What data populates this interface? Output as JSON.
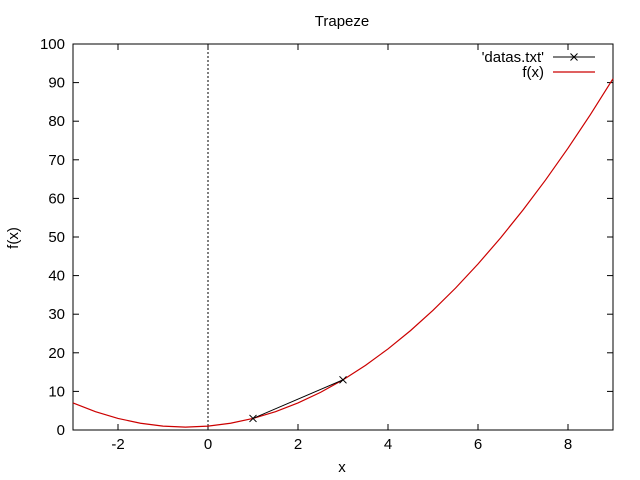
{
  "chart_data": {
    "type": "line",
    "title": "Trapeze",
    "xlabel": "x",
    "ylabel": "f(x)",
    "xlim": [
      -3,
      9
    ],
    "ylim": [
      0,
      100
    ],
    "xticks": [
      -2,
      0,
      2,
      4,
      6,
      8
    ],
    "yticks": [
      0,
      10,
      20,
      30,
      40,
      50,
      60,
      70,
      80,
      90,
      100
    ],
    "grid": false,
    "legend_position": "top-right",
    "vertical_reference_line": {
      "x": 0,
      "style": "dotted"
    },
    "series": [
      {
        "name": "'datas.txt'",
        "style": "linespoints",
        "marker": "x",
        "color": "#000000",
        "x": [
          1,
          3
        ],
        "y": [
          3,
          13
        ]
      },
      {
        "name": "f(x)",
        "style": "line",
        "color": "#cc0000",
        "function": "x^2 + x + 1",
        "x": [
          -3,
          -2.5,
          -2,
          -1.5,
          -1,
          -0.5,
          0,
          0.5,
          1,
          1.5,
          2,
          2.5,
          3,
          3.5,
          4,
          4.5,
          5,
          5.5,
          6,
          6.5,
          7,
          7.5,
          8,
          8.5,
          9
        ],
        "y": [
          7,
          4.75,
          3,
          1.75,
          1,
          0.75,
          1,
          1.75,
          3,
          4.75,
          7,
          9.75,
          13,
          16.75,
          21,
          25.75,
          31,
          36.75,
          43,
          49.75,
          57,
          64.75,
          73,
          81.75,
          91
        ]
      }
    ]
  }
}
